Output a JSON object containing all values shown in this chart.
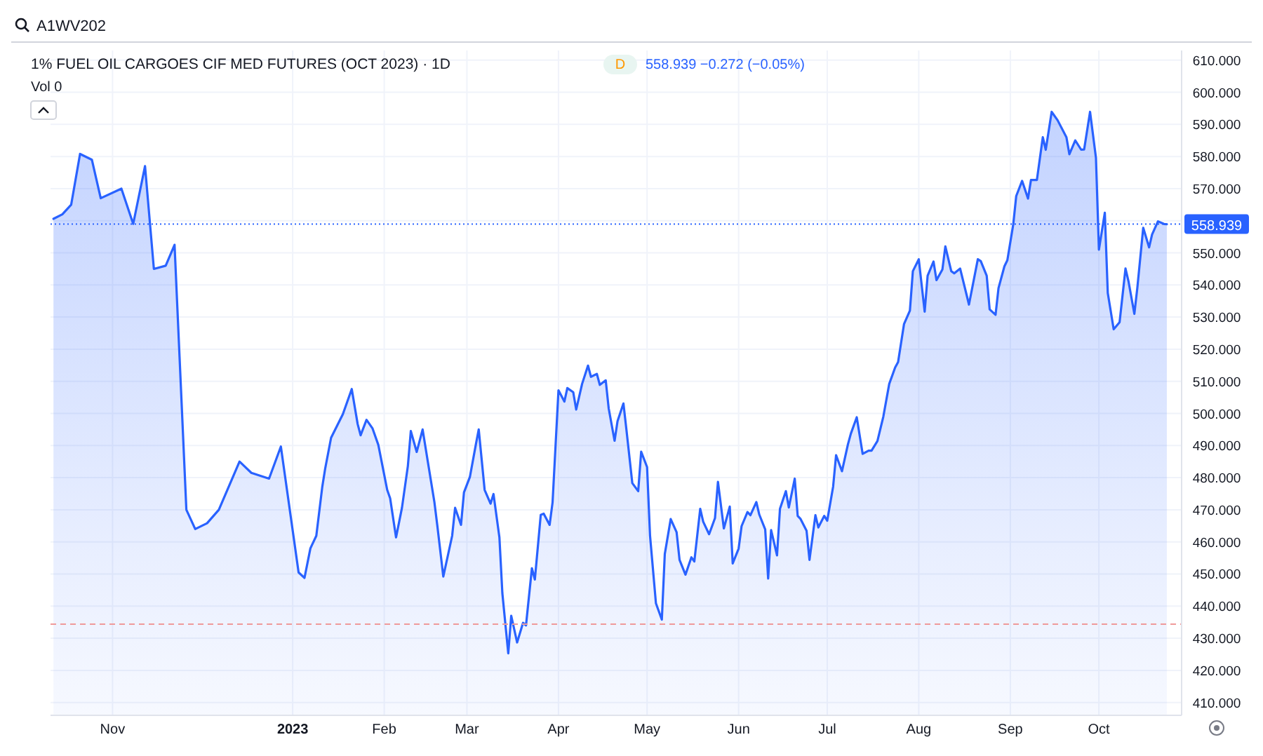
{
  "chart_data": {
    "type": "area",
    "title": "1% FUEL OIL CARGOES CIF MED FUTURES (OCT 2023) · 1D",
    "annotations": [
      "A1WV202",
      "D",
      "558.939 −0.272 (−0.05%)",
      "Vol 0"
    ],
    "x": [
      "2022-10-12",
      "2022-10-15",
      "2022-10-18",
      "2022-10-21",
      "2022-10-25",
      "2022-10-28",
      "2022-11-04",
      "2022-11-08",
      "2022-11-12",
      "2022-11-15",
      "2022-11-19",
      "2022-11-22",
      "2022-11-26",
      "2022-11-29",
      "2022-12-03",
      "2022-12-07",
      "2022-12-14",
      "2022-12-18",
      "2022-12-24",
      "2022-12-28",
      "2023-01-03",
      "2023-01-05",
      "2023-01-07",
      "2023-01-09",
      "2023-01-11",
      "2023-01-12",
      "2023-01-14",
      "2023-01-18",
      "2023-01-21",
      "2023-01-23",
      "2023-01-24",
      "2023-01-26",
      "2023-01-28",
      "2023-01-30",
      "2023-02-02",
      "2023-02-03",
      "2023-02-05",
      "2023-02-07",
      "2023-02-09",
      "2023-02-10",
      "2023-02-12",
      "2023-02-14",
      "2023-02-16",
      "2023-02-18",
      "2023-02-19",
      "2023-02-21",
      "2023-02-24",
      "2023-02-25",
      "2023-02-27",
      "2023-02-28",
      "2023-03-02",
      "2023-03-04",
      "2023-03-05",
      "2023-03-07",
      "2023-03-09",
      "2023-03-10",
      "2023-03-12",
      "2023-03-13",
      "2023-03-15",
      "2023-03-16",
      "2023-03-18",
      "2023-03-20",
      "2023-03-21",
      "2023-03-23",
      "2023-03-24",
      "2023-03-26",
      "2023-03-27",
      "2023-03-29",
      "2023-03-30",
      "2023-04-01",
      "2023-04-03",
      "2023-04-04",
      "2023-04-06",
      "2023-04-07",
      "2023-04-09",
      "2023-04-11",
      "2023-04-12",
      "2023-04-14",
      "2023-04-15",
      "2023-04-17",
      "2023-04-18",
      "2023-04-20",
      "2023-04-21",
      "2023-04-23",
      "2023-04-24",
      "2023-04-26",
      "2023-04-28",
      "2023-04-29",
      "2023-05-01",
      "2023-05-02",
      "2023-05-04",
      "2023-05-06",
      "2023-05-07",
      "2023-05-09",
      "2023-05-11",
      "2023-05-12",
      "2023-05-14",
      "2023-05-16",
      "2023-05-17",
      "2023-05-19",
      "2023-05-20",
      "2023-05-22",
      "2023-05-24",
      "2023-05-25",
      "2023-05-27",
      "2023-05-29",
      "2023-05-30",
      "2023-06-01",
      "2023-06-02",
      "2023-06-04",
      "2023-06-05",
      "2023-06-07",
      "2023-06-08",
      "2023-06-10",
      "2023-06-11",
      "2023-06-12",
      "2023-06-14",
      "2023-06-15",
      "2023-06-17",
      "2023-06-18",
      "2023-06-20",
      "2023-06-21",
      "2023-06-22",
      "2023-06-24",
      "2023-06-25",
      "2023-06-27",
      "2023-06-28",
      "2023-06-30",
      "2023-07-01",
      "2023-07-03",
      "2023-07-04",
      "2023-07-06",
      "2023-07-08",
      "2023-07-09",
      "2023-07-11",
      "2023-07-13",
      "2023-07-15",
      "2023-07-16",
      "2023-07-18",
      "2023-07-20",
      "2023-07-22",
      "2023-07-24",
      "2023-07-25",
      "2023-07-27",
      "2023-07-29",
      "2023-07-30",
      "2023-08-01",
      "2023-08-03",
      "2023-08-04",
      "2023-08-06",
      "2023-08-07",
      "2023-08-09",
      "2023-08-10",
      "2023-08-12",
      "2023-08-13",
      "2023-08-15",
      "2023-08-18",
      "2023-08-21",
      "2023-08-22",
      "2023-08-24",
      "2023-08-25",
      "2023-08-27",
      "2023-08-28",
      "2023-08-30",
      "2023-08-31",
      "2023-09-02",
      "2023-09-03",
      "2023-09-05",
      "2023-09-07",
      "2023-09-08",
      "2023-09-10",
      "2023-09-12",
      "2023-09-13",
      "2023-09-15",
      "2023-09-17",
      "2023-09-20",
      "2023-09-21",
      "2023-09-23",
      "2023-09-25",
      "2023-09-26",
      "2023-09-28",
      "2023-09-30",
      "2023-10-01",
      "2023-10-03",
      "2023-10-04",
      "2023-10-06",
      "2023-10-08",
      "2023-10-10",
      "2023-10-11",
      "2023-10-13",
      "2023-10-14",
      "2023-10-16",
      "2023-10-18",
      "2023-10-19",
      "2023-10-21",
      "2023-10-23",
      "2023-10-24"
    ],
    "series": [
      {
        "color": "#2962ff",
        "values": [
          560.6,
          562,
          565,
          580.8,
          579,
          567,
          570,
          559,
          577,
          545,
          546,
          552.5,
          470,
          464,
          465.8,
          470,
          485,
          481.5,
          479.7,
          489.7,
          450.5,
          448.8,
          458,
          461.9,
          477,
          482.8,
          492.4,
          499.8,
          507.6,
          496.7,
          493.2,
          498,
          495.4,
          490.2,
          476.2,
          473.6,
          461.4,
          470.6,
          483.6,
          494.5,
          488,
          495,
          483.6,
          472.3,
          464.9,
          449.2,
          461.9,
          470.6,
          465.3,
          475.4,
          480.2,
          490.2,
          495,
          476.2,
          471.9,
          474.9,
          461.4,
          444,
          425.3,
          437,
          428.7,
          434.8,
          434,
          451.8,
          448.3,
          468.4,
          468.8,
          465.3,
          472.3,
          507.2,
          503.7,
          507.9,
          506.6,
          501.2,
          509.2,
          514.9,
          511.4,
          512.3,
          508.9,
          510.3,
          501.6,
          491.5,
          497.6,
          503.1,
          495,
          478.3,
          475.8,
          488.1,
          483.3,
          462,
          440.9,
          435.8,
          456.2,
          467.1,
          463,
          454.4,
          449.8,
          455.2,
          453.9,
          470.3,
          466.3,
          462.4,
          467.4,
          478.7,
          464.2,
          471,
          453.3,
          457.9,
          464.9,
          469.3,
          468.3,
          472.4,
          468.5,
          463.9,
          448.6,
          463.7,
          455.8,
          470.3,
          475.8,
          470.7,
          479.7,
          468.1,
          467.1,
          463.5,
          454.4,
          468.3,
          464.5,
          468.1,
          466.6,
          477.2,
          487,
          482,
          490.3,
          493.7,
          498.8,
          487.4,
          488.4,
          488.4,
          491.4,
          499,
          509.2,
          514.3,
          516,
          527.8,
          532,
          544.3,
          548,
          531.7,
          542.9,
          547.3,
          541.5,
          544.8,
          552,
          544.3,
          543.6,
          545.1,
          533.9,
          548,
          547.4,
          542.9,
          532.4,
          530.7,
          539,
          545.8,
          547.7,
          558.9,
          567.7,
          572.4,
          566.9,
          572.7,
          572.7,
          586,
          582.1,
          593.9,
          591.3,
          586,
          580.7,
          585,
          582.1,
          582.2,
          593.9,
          579.6,
          551,
          562.5,
          537.5,
          526.2,
          528.4,
          545.1,
          541.2,
          531,
          539,
          557.8,
          551.7,
          555.7,
          559.8,
          559,
          558.9
        ]
      }
    ],
    "xlim": [
      "2022-10-11",
      "2023-10-29"
    ],
    "xticks": [
      {
        "value": "2022-11-01",
        "label": "Nov"
      },
      {
        "value": "2023-01-01",
        "label": "2023"
      },
      {
        "value": "2023-02-01",
        "label": "Feb"
      },
      {
        "value": "2023-03-01",
        "label": "Mar"
      },
      {
        "value": "2023-04-01",
        "label": "Apr"
      },
      {
        "value": "2023-05-01",
        "label": "May"
      },
      {
        "value": "2023-06-01",
        "label": "Jun"
      },
      {
        "value": "2023-07-01",
        "label": "Jul"
      },
      {
        "value": "2023-08-01",
        "label": "Aug"
      },
      {
        "value": "2023-09-01",
        "label": "Sep"
      },
      {
        "value": "2023-10-01",
        "label": "Oct"
      }
    ],
    "ylim": [
      406,
      613
    ],
    "yticks": [
      {
        "value": 410,
        "label": "410.000"
      },
      {
        "value": 420,
        "label": "420.000"
      },
      {
        "value": 430,
        "label": "430.000"
      },
      {
        "value": 440,
        "label": "440.000"
      },
      {
        "value": 450,
        "label": "450.000"
      },
      {
        "value": 460,
        "label": "460.000"
      },
      {
        "value": 470,
        "label": "470.000"
      },
      {
        "value": 480,
        "label": "480.000"
      },
      {
        "value": 490,
        "label": "490.000"
      },
      {
        "value": 500,
        "label": "500.000"
      },
      {
        "value": 510,
        "label": "510.000"
      },
      {
        "value": 520,
        "label": "520.000"
      },
      {
        "value": 530,
        "label": "530.000"
      },
      {
        "value": 540,
        "label": "540.000"
      },
      {
        "value": 550,
        "label": "550.000"
      },
      {
        "value": 560,
        "label": null
      },
      {
        "value": 570,
        "label": "570.000"
      },
      {
        "value": 580,
        "label": "580.000"
      },
      {
        "value": 590,
        "label": "590.000"
      },
      {
        "value": 600,
        "label": "600.000"
      },
      {
        "value": 610,
        "label": "610.000"
      }
    ],
    "ref_lines": [
      {
        "axis": "y",
        "value": 558.939,
        "label": "558.939",
        "color": "#2962ff",
        "line_style": "dotted"
      },
      {
        "axis": "y",
        "value": 434.4,
        "label": null,
        "color": "#ef9a9a",
        "line_style": "dashed"
      }
    ],
    "grid": true,
    "marker": "none",
    "line_style": "solid"
  }
}
